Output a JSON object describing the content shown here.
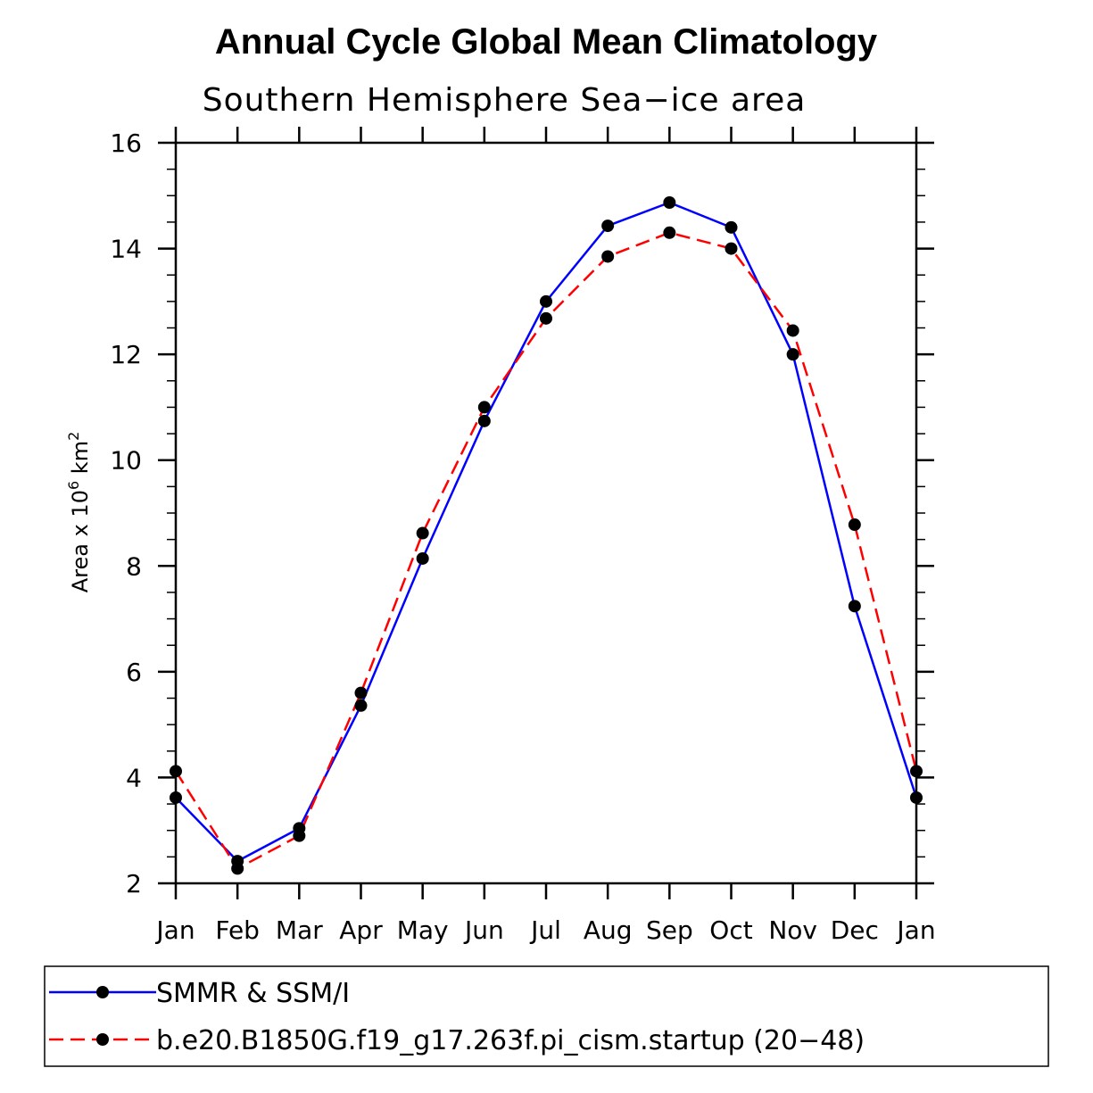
{
  "chart_data": {
    "type": "line",
    "title": "Annual Cycle Global Mean Climatology",
    "subtitle": "Southern Hemisphere Sea−ice area",
    "ylabel": "Area x 10",
    "ylabel_exp1": "6",
    "ylabel_unit": "km",
    "ylabel_exp2": "2",
    "categories": [
      "Jan",
      "Feb",
      "Mar",
      "Apr",
      "May",
      "Jun",
      "Jul",
      "Aug",
      "Sep",
      "Oct",
      "Nov",
      "Dec",
      "Jan"
    ],
    "ylim": [
      2,
      16
    ],
    "yticks": [
      2,
      4,
      6,
      8,
      10,
      12,
      14,
      16
    ],
    "series": [
      {
        "name": "SMMR & SSM/I",
        "color": "#0000ff",
        "dash": "solid",
        "values": [
          3.62,
          2.42,
          3.04,
          5.36,
          8.14,
          10.74,
          13.0,
          14.43,
          14.87,
          14.4,
          12.0,
          7.24,
          3.62
        ]
      },
      {
        "name": "b.e20.B1850G.f19_g17.263f.pi_cism.startup (20−48)",
        "color": "#ff0000",
        "dash": "dashed",
        "values": [
          4.12,
          2.28,
          2.9,
          5.6,
          8.62,
          11.0,
          12.68,
          13.85,
          14.3,
          14.0,
          12.45,
          8.78,
          4.12
        ]
      }
    ]
  }
}
